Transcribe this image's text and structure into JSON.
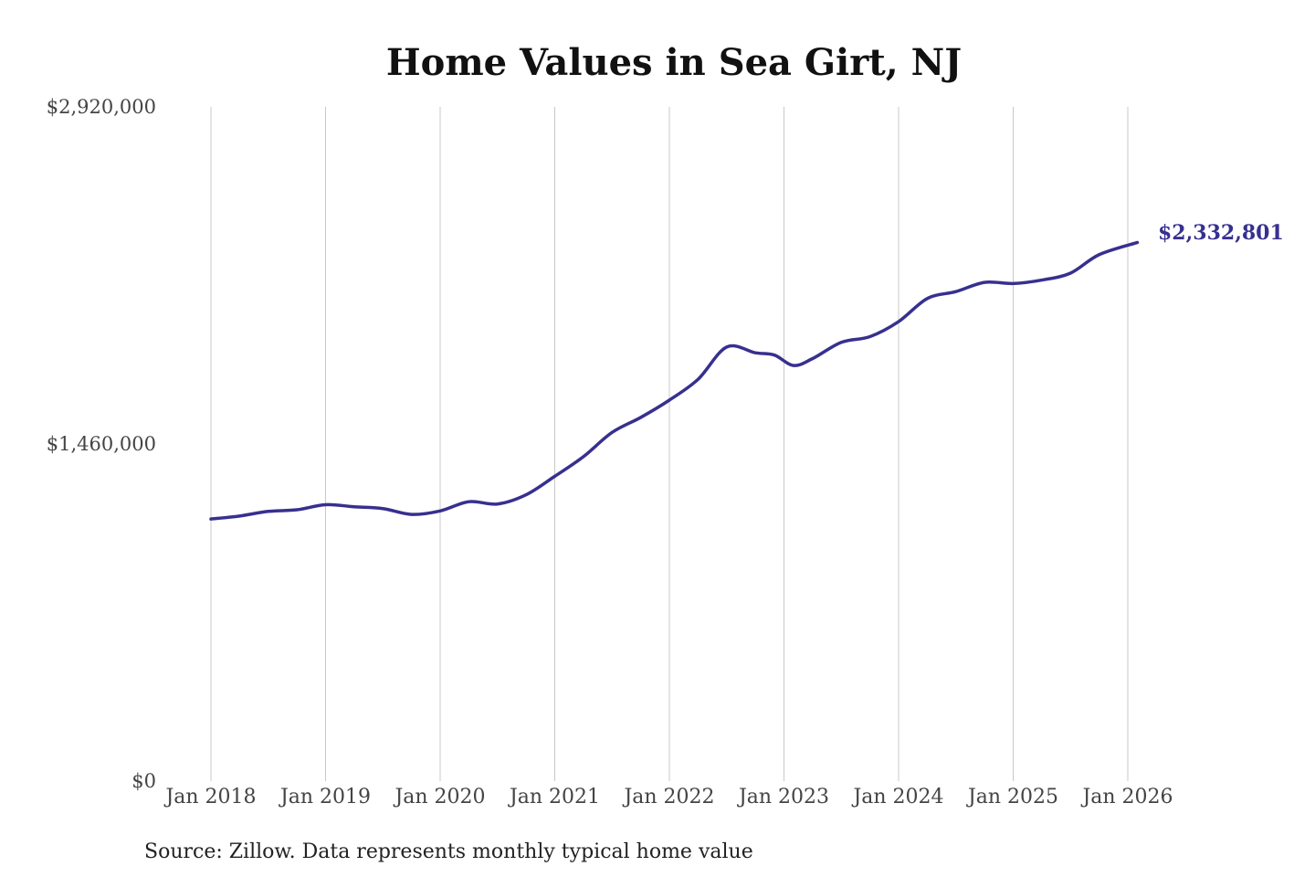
{
  "chart_data": {
    "type": "line",
    "title": "Home Values in Sea Girt, NJ",
    "source_note": "Source: Zillow. Data represents monthly typical home value",
    "line_color": "#37308f",
    "y_ticks": [
      {
        "value": 2920000,
        "label": "$2,920,000"
      },
      {
        "value": 1460000,
        "label": "$1,460,000"
      },
      {
        "value": 0,
        "label": "$0"
      }
    ],
    "ylim": [
      0,
      2920000
    ],
    "x_ticks": [
      {
        "t": 0,
        "label": "Jan 2018"
      },
      {
        "t": 12,
        "label": "Jan 2019"
      },
      {
        "t": 24,
        "label": "Jan 2020"
      },
      {
        "t": 36,
        "label": "Jan 2021"
      },
      {
        "t": 48,
        "label": "Jan 2022"
      },
      {
        "t": 60,
        "label": "Jan 2023"
      },
      {
        "t": 72,
        "label": "Jan 2024"
      },
      {
        "t": 84,
        "label": "Jan 2025"
      },
      {
        "t": 96,
        "label": "Jan 2026"
      }
    ],
    "grid": "vertical",
    "last_value_label": "$2,332,801",
    "series": [
      {
        "points": [
          {
            "t": 0,
            "v": 1135000
          },
          {
            "t": 3,
            "v": 1148000
          },
          {
            "t": 6,
            "v": 1168000
          },
          {
            "t": 9,
            "v": 1175000
          },
          {
            "t": 12,
            "v": 1197000
          },
          {
            "t": 15,
            "v": 1188000
          },
          {
            "t": 18,
            "v": 1180000
          },
          {
            "t": 21,
            "v": 1155000
          },
          {
            "t": 24,
            "v": 1170000
          },
          {
            "t": 27,
            "v": 1210000
          },
          {
            "t": 30,
            "v": 1200000
          },
          {
            "t": 33,
            "v": 1240000
          },
          {
            "t": 36,
            "v": 1320000
          },
          {
            "t": 39,
            "v": 1405000
          },
          {
            "t": 42,
            "v": 1510000
          },
          {
            "t": 45,
            "v": 1575000
          },
          {
            "t": 48,
            "v": 1650000
          },
          {
            "t": 51,
            "v": 1740000
          },
          {
            "t": 54,
            "v": 1880000
          },
          {
            "t": 57,
            "v": 1855000
          },
          {
            "t": 59,
            "v": 1845000
          },
          {
            "t": 61,
            "v": 1800000
          },
          {
            "t": 63,
            "v": 1830000
          },
          {
            "t": 66,
            "v": 1900000
          },
          {
            "t": 69,
            "v": 1925000
          },
          {
            "t": 72,
            "v": 1990000
          },
          {
            "t": 75,
            "v": 2090000
          },
          {
            "t": 78,
            "v": 2120000
          },
          {
            "t": 81,
            "v": 2160000
          },
          {
            "t": 84,
            "v": 2155000
          },
          {
            "t": 87,
            "v": 2170000
          },
          {
            "t": 90,
            "v": 2200000
          },
          {
            "t": 93,
            "v": 2280000
          },
          {
            "t": 97,
            "v": 2332801
          }
        ]
      }
    ]
  }
}
